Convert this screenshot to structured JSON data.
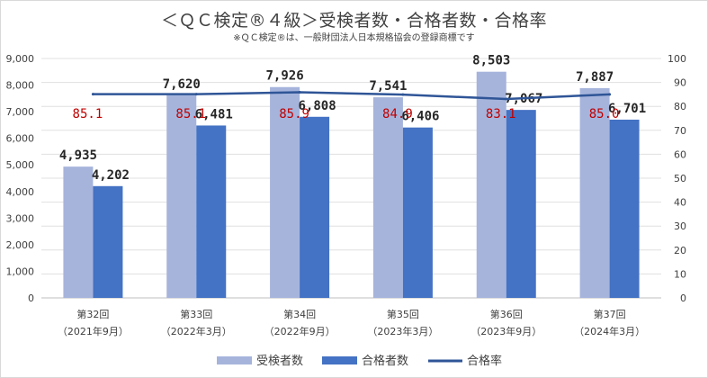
{
  "chart_data": {
    "type": "bar",
    "title": "＜ＱＣ検定®４級＞受検者数・合格者数・合格率",
    "subtitle": "※ＱＣ検定®は、一般財団法人日本規格協会の登録商標です",
    "categories": [
      "第32回",
      "第33回",
      "第34回",
      "第35回",
      "第36回",
      "第37回"
    ],
    "category_sublabels": [
      "（2021年9月）",
      "（2022年3月）",
      "（2022年9月）",
      "（2023年3月）",
      "（2023年9月）",
      "（2024年3月）"
    ],
    "series": [
      {
        "name": "受検者数",
        "type": "bar",
        "axis": "left",
        "color": "#a6b4dc",
        "values": [
          4935,
          7620,
          7926,
          7541,
          8503,
          7887
        ],
        "labels": [
          "4,935",
          "7,620",
          "7,926",
          "7,541",
          "8,503",
          "7,887"
        ]
      },
      {
        "name": "合格者数",
        "type": "bar",
        "axis": "left",
        "color": "#4472c4",
        "values": [
          4202,
          6481,
          6808,
          6406,
          7067,
          6701
        ],
        "labels": [
          "4,202",
          "6,481",
          "6,808",
          "6,406",
          "7,067",
          "6,701"
        ]
      },
      {
        "name": "合格率",
        "type": "line",
        "axis": "right",
        "color": "#2f5597",
        "values": [
          85.1,
          85.1,
          85.9,
          84.9,
          83.1,
          85.0
        ],
        "labels": [
          "85.1",
          "85.1",
          "85.9",
          "84.9",
          "83.1",
          "85.0"
        ]
      }
    ],
    "ylim_left": [
      0,
      9000
    ],
    "yticks_left": [
      "0",
      "1,000",
      "2,000",
      "3,000",
      "4,000",
      "5,000",
      "6,000",
      "7,000",
      "8,000",
      "9,000"
    ],
    "ylim_right": [
      0,
      100
    ],
    "yticks_right": [
      "0",
      "10",
      "20",
      "30",
      "40",
      "50",
      "60",
      "70",
      "80",
      "90",
      "100"
    ],
    "rate_label_color": "#c00000",
    "grid": true,
    "legend_position": "bottom"
  }
}
